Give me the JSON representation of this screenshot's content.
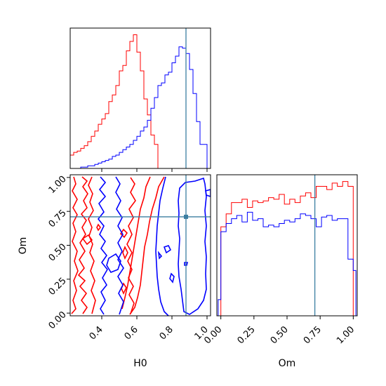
{
  "chart_data": {
    "type": "corner",
    "parameters": [
      "H0",
      "Om"
    ],
    "truth": {
      "H0": 0.88,
      "Om": 0.71
    },
    "colors": {
      "red": "#ff0000",
      "blue": "#0000ff",
      "truth": "#3b7ea1"
    },
    "panels": [
      {
        "id": "h0-hist",
        "type": "histogram",
        "xlim": [
          0.22,
          1.02
        ],
        "y_ticks_visible": false,
        "series": [
          {
            "color": "red",
            "bin_edges": [
              0.22,
              0.24,
              0.26,
              0.28,
              0.3,
              0.32,
              0.34,
              0.36,
              0.38,
              0.4,
              0.42,
              0.44,
              0.46,
              0.48,
              0.5,
              0.52,
              0.54,
              0.56,
              0.58,
              0.6,
              0.62,
              0.64,
              0.66,
              0.68,
              0.7,
              0.72,
              0.74
            ],
            "counts": [
              10,
              12,
              13,
              15,
              17,
              20,
              24,
              28,
              33,
              37,
              41,
              50,
              55,
              62,
              73,
              77,
              88,
              95,
              100,
              87,
              73,
              52,
              40,
              25,
              18,
              0
            ]
          },
          {
            "color": "blue",
            "bin_edges": [
              0.26,
              0.28,
              0.3,
              0.32,
              0.34,
              0.36,
              0.38,
              0.4,
              0.42,
              0.44,
              0.46,
              0.48,
              0.5,
              0.52,
              0.54,
              0.56,
              0.58,
              0.6,
              0.62,
              0.64,
              0.66,
              0.68,
              0.7,
              0.72,
              0.74,
              0.76,
              0.78,
              0.8,
              0.82,
              0.84,
              0.86,
              0.88,
              0.9,
              0.92,
              0.94,
              0.96,
              0.98,
              1.0
            ],
            "counts": [
              0,
              1,
              1,
              2,
              2,
              3,
              4,
              5,
              6,
              7,
              9,
              10,
              12,
              14,
              16,
              18,
              21,
              24,
              28,
              31,
              36,
              45,
              53,
              62,
              64,
              70,
              72,
              79,
              84,
              91,
              90,
              86,
              74,
              56,
              35,
              18,
              18
            ]
          }
        ]
      },
      {
        "id": "h0-om-contour",
        "type": "contour",
        "xlabel": "H0",
        "ylabel": "Om",
        "xlim": [
          0.22,
          1.02
        ],
        "ylim": [
          -0.02,
          1.02
        ],
        "xticks": [
          "0.4",
          "0.6",
          "0.8",
          "1.0"
        ],
        "yticks": [
          "0.00",
          "0.25",
          "0.50",
          "0.75",
          "1.00"
        ],
        "series": [
          {
            "color": "red"
          },
          {
            "color": "blue"
          }
        ]
      },
      {
        "id": "om-hist",
        "type": "histogram",
        "xlabel": "Om",
        "xlim": [
          -0.03,
          1.03
        ],
        "xticks": [
          "0.00",
          "0.25",
          "0.50",
          "0.75",
          "1.00"
        ],
        "y_ticks_visible": false,
        "series": [
          {
            "color": "red",
            "bin_edges": [
              0.0,
              0.04,
              0.08,
              0.12,
              0.16,
              0.2,
              0.24,
              0.28,
              0.32,
              0.36,
              0.4,
              0.44,
              0.48,
              0.52,
              0.56,
              0.6,
              0.64,
              0.68,
              0.72,
              0.76,
              0.8,
              0.84,
              0.88,
              0.92,
              0.96,
              1.0
            ],
            "counts": [
              55,
              63,
              70,
              70,
              72,
              67,
              71,
              70,
              71,
              73,
              72,
              75,
              69,
              72,
              70,
              74,
              76,
              73,
              80,
              80,
              78,
              82,
              80,
              83,
              80
            ]
          },
          {
            "color": "blue",
            "bin_edges": [
              -0.02,
              0.0,
              0.04,
              0.08,
              0.12,
              0.16,
              0.2,
              0.24,
              0.28,
              0.32,
              0.36,
              0.4,
              0.44,
              0.48,
              0.52,
              0.56,
              0.6,
              0.64,
              0.68,
              0.72,
              0.76,
              0.8,
              0.84,
              0.88,
              0.92,
              0.96,
              1.0,
              1.02
            ],
            "counts": [
              10,
              52,
              57,
              60,
              62,
              58,
              64,
              59,
              60,
              55,
              56,
              55,
              57,
              59,
              58,
              60,
              63,
              62,
              60,
              55,
              61,
              62,
              59,
              60,
              60,
              35,
              28
            ]
          }
        ]
      }
    ]
  }
}
